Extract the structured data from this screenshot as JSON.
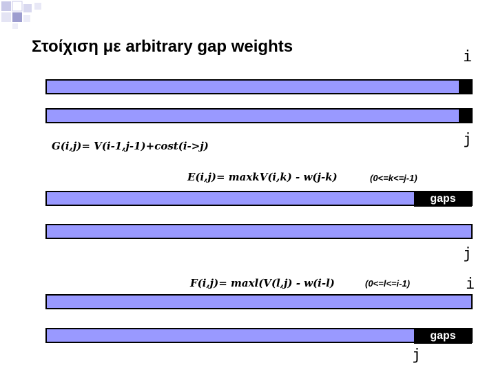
{
  "slide": {
    "title": "Στοίχιση με arbitrary gap weights",
    "labels": {
      "i_top": "i",
      "j_top": "j",
      "i_mid": "j",
      "j_mid2": "j",
      "i_bottom": "i",
      "j_bottom": "j"
    },
    "formulas": {
      "g": "G(i,j)= V(i-1,j-1)+cost(i->j)",
      "e": "E(i,j)= maxkV(i,k) - w(j-k)",
      "e_range": "(0<=k<=j-1)",
      "f": "F(i,j)= maxl(V(l,j) - w(i-l)",
      "f_range": "(0<=l<=i-1)"
    },
    "gap_label_1": "gaps",
    "gap_label_2": "gaps",
    "colors": {
      "bar_fill": "#9999ff",
      "bar_border": "#000000",
      "accent_square": "#3d3d8f"
    }
  }
}
